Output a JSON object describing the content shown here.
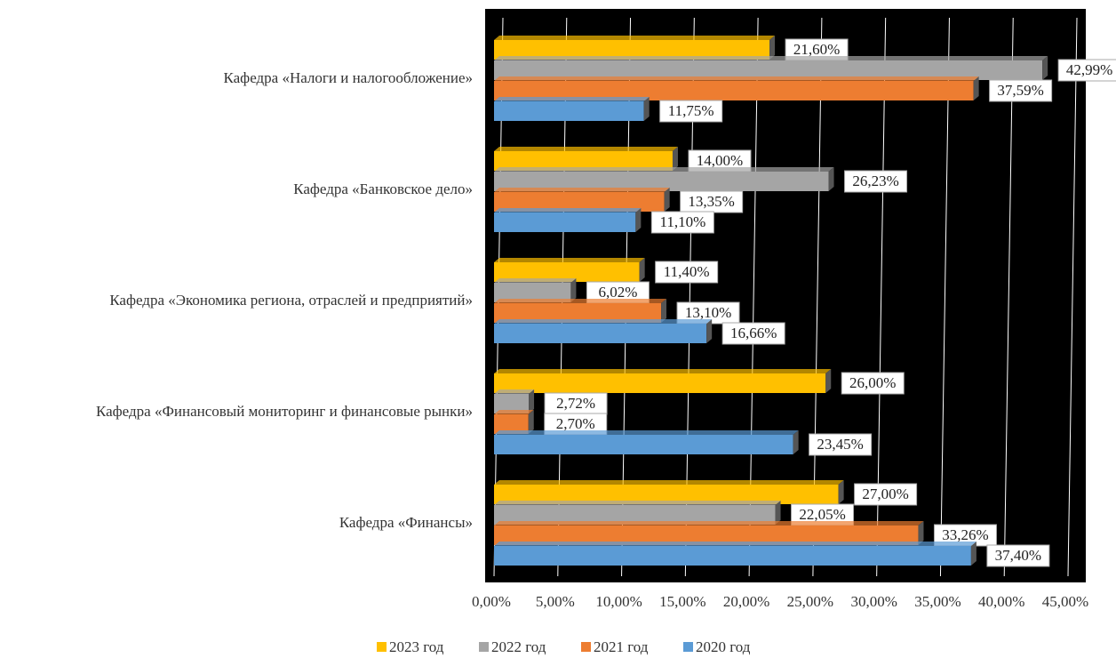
{
  "chart_data": {
    "type": "bar",
    "orientation": "horizontal",
    "categories": [
      "Кафедра «Налоги и налогообложение»",
      "Кафедра «Банковское дело»",
      "Кафедра «Экономика региона, отраслей и предприятий»",
      "Кафедра «Финансовый мониторинг и финансовые рынки»",
      "Кафедра «Финансы»"
    ],
    "series": [
      {
        "name": "2023 год",
        "color": "#ffc000",
        "values": [
          21.6,
          14.0,
          11.4,
          26.0,
          27.0
        ],
        "value_labels": [
          "21,60%",
          "14,00%",
          "11,40%",
          "26,00%",
          "27,00%"
        ]
      },
      {
        "name": "2022 год",
        "color": "#a5a5a5",
        "values": [
          42.99,
          26.23,
          6.02,
          2.72,
          22.05
        ],
        "value_labels": [
          "42,99%",
          "26,23%",
          "6,02%",
          "2,72%",
          "22,05%"
        ]
      },
      {
        "name": "2021 год",
        "color": "#ed7d31",
        "values": [
          37.59,
          13.35,
          13.1,
          2.7,
          33.26
        ],
        "value_labels": [
          "37,59%",
          "13,35%",
          "13,10%",
          "2,70%",
          "33,26%"
        ]
      },
      {
        "name": "2020 год",
        "color": "#5b9bd5",
        "values": [
          11.75,
          11.1,
          16.66,
          23.45,
          37.4
        ],
        "value_labels": [
          "11,75%",
          "11,10%",
          "16,66%",
          "23,45%",
          "37,40%"
        ]
      }
    ],
    "xlim": [
      0,
      45
    ],
    "xticks": [
      {
        "value": 0,
        "label": "0,00%"
      },
      {
        "value": 5,
        "label": "5,00%"
      },
      {
        "value": 10,
        "label": "10,00%"
      },
      {
        "value": 15,
        "label": "15,00%"
      },
      {
        "value": 20,
        "label": "20,00%"
      },
      {
        "value": 25,
        "label": "25,00%"
      },
      {
        "value": 30,
        "label": "30,00%"
      },
      {
        "value": 35,
        "label": "35,00%"
      },
      {
        "value": 40,
        "label": "40,00%"
      },
      {
        "value": 45,
        "label": "45,00%"
      }
    ],
    "grid": true,
    "legend": "bottom"
  }
}
